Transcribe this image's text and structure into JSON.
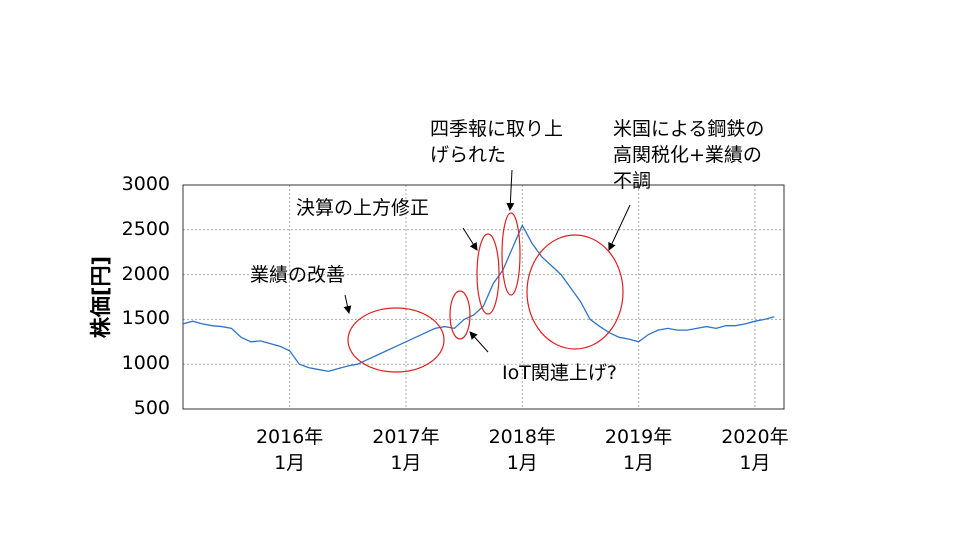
{
  "chart_data": {
    "type": "line",
    "ylabel": "株価[円]",
    "color": "#2e75c9",
    "grid": true,
    "x": [
      "2015-02",
      "2015-03",
      "2015-04",
      "2015-05",
      "2015-06",
      "2015-07",
      "2015-08",
      "2015-09",
      "2015-10",
      "2015-11",
      "2015-12",
      "2016-01",
      "2016-02",
      "2016-03",
      "2016-04",
      "2016-05",
      "2016-06",
      "2016-07",
      "2016-08",
      "2016-09",
      "2016-10",
      "2016-11",
      "2016-12",
      "2017-01",
      "2017-02",
      "2017-03",
      "2017-04",
      "2017-05",
      "2017-06",
      "2017-07",
      "2017-08",
      "2017-09",
      "2017-10",
      "2017-11",
      "2017-12",
      "2018-01",
      "2018-02",
      "2018-03",
      "2018-04",
      "2018-05",
      "2018-06",
      "2018-07",
      "2018-08",
      "2018-09",
      "2018-10",
      "2018-11",
      "2018-12",
      "2019-01",
      "2019-02",
      "2019-03",
      "2019-04",
      "2019-05",
      "2019-06",
      "2019-07",
      "2019-08",
      "2019-09",
      "2019-10",
      "2019-11",
      "2019-12",
      "2020-01",
      "2020-02",
      "2020-03"
    ],
    "values": [
      1450,
      1480,
      1450,
      1430,
      1420,
      1400,
      1300,
      1250,
      1260,
      1230,
      1200,
      1150,
      1000,
      960,
      940,
      920,
      950,
      980,
      1000,
      1050,
      1100,
      1150,
      1200,
      1250,
      1300,
      1350,
      1400,
      1420,
      1400,
      1500,
      1550,
      1650,
      1900,
      2050,
      2300,
      2550,
      2350,
      2200,
      2100,
      2000,
      1850,
      1700,
      1500,
      1420,
      1350,
      1300,
      1280,
      1250,
      1330,
      1380,
      1400,
      1380,
      1380,
      1400,
      1420,
      1400,
      1430,
      1430,
      1450,
      1480,
      1500,
      1530
    ],
    "xlim": [
      "2015-02",
      "2020-04"
    ],
    "xticks": [
      {
        "value": "2016-01",
        "label": "2016年\n1月"
      },
      {
        "value": "2017-01",
        "label": "2017年\n1月"
      },
      {
        "value": "2018-01",
        "label": "2018年\n1月"
      },
      {
        "value": "2019-01",
        "label": "2019年\n1月"
      },
      {
        "value": "2020-01",
        "label": "2020年\n1月"
      }
    ],
    "ylim": [
      500,
      3000
    ],
    "yticks": [
      500,
      1000,
      1500,
      2000,
      2500,
      3000
    ],
    "annotations": [
      "業績の改善",
      "決算の上方修正",
      "四季報に取り上\nげられた",
      "IoT関連上げ?",
      "米国による鋼鉄の\n高関税化+業績の\n不調"
    ]
  }
}
